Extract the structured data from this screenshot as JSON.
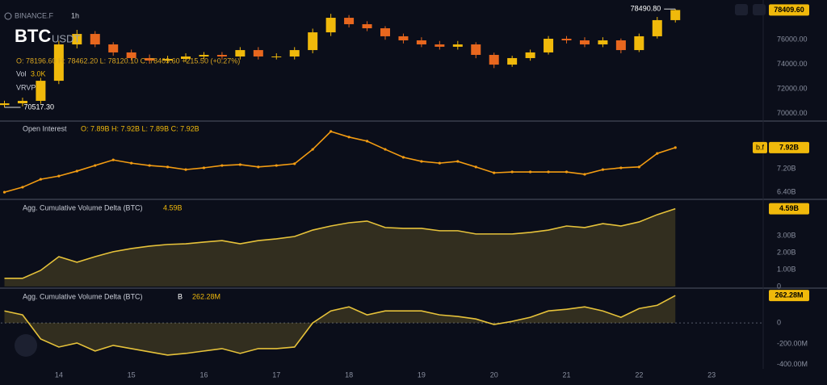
{
  "header": {
    "exchange": "BINANCE.F",
    "interval": "1h",
    "symbol": "BTC",
    "quote": "USDT",
    "ohlc_text": "O: 78196.60 H: 78462.20 L: 78120.10 C: 78409.60 +215.50 (+0.27%)",
    "volume_label": "Vol",
    "volume_value": "3.0K",
    "indicator": "VRVP"
  },
  "chart_data": [
    {
      "type": "candlestick",
      "up_color": "#f0b90b",
      "down_color": "#e8671e",
      "x": [
        13.25,
        13.5,
        13.75,
        14,
        14.25,
        14.5,
        14.75,
        15,
        15.25,
        15.5,
        15.75,
        16,
        16.25,
        16.5,
        16.75,
        17,
        17.25,
        17.5,
        17.75,
        18,
        18.25,
        18.5,
        18.75,
        19,
        19.25,
        19.5,
        19.75,
        20,
        20.25,
        20.5,
        20.75,
        21,
        21.25,
        21.5,
        21.75,
        22,
        22.25,
        22.5
      ],
      "open": [
        70700,
        70840,
        71040,
        72670,
        75620,
        76470,
        75620,
        74970,
        74510,
        74310,
        74440,
        74640,
        74770,
        74640,
        75160,
        74640,
        74640,
        75160,
        76600,
        77780,
        77260,
        76930,
        76280,
        75950,
        75620,
        75430,
        75620,
        74770,
        73980,
        74510,
        74970,
        76080,
        75950,
        75620,
        75950,
        75160,
        76280,
        77590
      ],
      "high": [
        71050,
        71300,
        72900,
        75900,
        76800,
        76700,
        75800,
        75200,
        74800,
        74700,
        74900,
        75000,
        75000,
        75400,
        75400,
        74900,
        75400,
        76900,
        78100,
        78000,
        77500,
        77100,
        76500,
        76200,
        75900,
        75900,
        75800,
        74950,
        74700,
        75200,
        76300,
        76300,
        76200,
        76200,
        76100,
        76500,
        77850,
        78490.8
      ],
      "low": [
        70517.3,
        70600,
        70800,
        72400,
        75300,
        75400,
        74700,
        74300,
        74050,
        74100,
        74200,
        74400,
        74400,
        74400,
        74400,
        74400,
        74400,
        74900,
        76300,
        77000,
        76700,
        76000,
        75700,
        75400,
        75200,
        75200,
        74500,
        73700,
        73800,
        74300,
        74800,
        75700,
        75400,
        75400,
        74900,
        75000,
        76100,
        77400
      ],
      "close": [
        70840,
        71040,
        72670,
        75620,
        76470,
        75620,
        74970,
        74510,
        74310,
        74440,
        74640,
        74770,
        74640,
        75160,
        74640,
        74640,
        75160,
        76600,
        77780,
        77260,
        76930,
        76280,
        75950,
        75620,
        75430,
        75620,
        74770,
        73980,
        74510,
        74970,
        76080,
        75950,
        75620,
        75950,
        75160,
        76280,
        77590,
        78409.6
      ],
      "xlim": [
        13.2,
        23.7
      ],
      "ylim": [
        69400,
        78700
      ],
      "yticks": [
        {
          "value": 76000,
          "label": "76000.00"
        },
        {
          "value": 74000,
          "label": "74000.00"
        },
        {
          "value": 72000,
          "label": "72000.00"
        },
        {
          "value": 70000,
          "label": "70000.00"
        }
      ],
      "current": {
        "value": 78409.6,
        "label": "78409.60"
      },
      "annotations": [
        {
          "x": 22.5,
          "value": 78490.8,
          "label": "78490.80"
        },
        {
          "x": 13.25,
          "value": 70517.3,
          "label": "70517.30"
        }
      ]
    },
    {
      "type": "line",
      "title": "Open Interest",
      "legend_text": "O: 7.89B H: 7.92B L: 7.89B C: 7.92B",
      "x": [
        13.25,
        13.5,
        13.75,
        14,
        14.25,
        14.5,
        14.75,
        15,
        15.25,
        15.5,
        15.75,
        16,
        16.25,
        16.5,
        16.75,
        17,
        17.25,
        17.5,
        17.75,
        18,
        18.25,
        18.5,
        18.75,
        19,
        19.25,
        19.5,
        19.75,
        20,
        20.25,
        20.5,
        20.75,
        21,
        21.25,
        21.5,
        21.75,
        22,
        22.25,
        22.5
      ],
      "series": [
        {
          "color": "#f39c12",
          "values": [
            6.4,
            6.57,
            6.84,
            6.95,
            7.12,
            7.31,
            7.5,
            7.39,
            7.31,
            7.26,
            7.17,
            7.23,
            7.31,
            7.34,
            7.26,
            7.31,
            7.37,
            7.86,
            8.47,
            8.28,
            8.14,
            7.86,
            7.59,
            7.45,
            7.39,
            7.45,
            7.26,
            7.06,
            7.09,
            7.09,
            7.09,
            7.09,
            7.01,
            7.17,
            7.23,
            7.26,
            7.72,
            7.92
          ]
        }
      ],
      "xlim": [
        13.2,
        23.7
      ],
      "ylim": [
        6.21,
        8.77
      ],
      "yticks": [
        {
          "value": 7.2,
          "label": "7.20B"
        },
        {
          "value": 6.4,
          "label": "6.40B"
        }
      ],
      "current": {
        "value": 7.92,
        "label": "7.92B"
      },
      "badge": "b.f"
    },
    {
      "type": "area",
      "title": "Agg. Cumulative Volume Delta (BTC)",
      "x": [
        13.25,
        13.5,
        13.75,
        14,
        14.25,
        14.5,
        14.75,
        15,
        15.25,
        15.5,
        15.75,
        16,
        16.25,
        16.5,
        16.75,
        17,
        17.25,
        17.5,
        17.75,
        18,
        18.25,
        18.5,
        18.75,
        19,
        19.25,
        19.5,
        19.75,
        20,
        20.25,
        20.5,
        20.75,
        21,
        21.25,
        21.5,
        21.75,
        22,
        22.25,
        22.5
      ],
      "series": [
        {
          "color": "#e6c23a",
          "values": [
            0.48,
            0.48,
            0.95,
            1.76,
            1.43,
            1.76,
            2.05,
            2.24,
            2.38,
            2.48,
            2.52,
            2.62,
            2.71,
            2.52,
            2.71,
            2.81,
            2.95,
            3.33,
            3.57,
            3.76,
            3.86,
            3.48,
            3.43,
            3.43,
            3.29,
            3.29,
            3.1,
            3.1,
            3.1,
            3.19,
            3.33,
            3.57,
            3.48,
            3.71,
            3.57,
            3.81,
            4.24,
            4.59
          ]
        }
      ],
      "xlim": [
        13.2,
        23.7
      ],
      "ylim": [
        -0.1,
        5.0
      ],
      "yticks": [
        {
          "value": 3,
          "label": "3.00B"
        },
        {
          "value": 2,
          "label": "2.00B"
        },
        {
          "value": 1,
          "label": "1.00B"
        },
        0
      ],
      "current": {
        "value": 4.59,
        "label": "4.59B"
      }
    },
    {
      "type": "area",
      "title": "Agg. Cumulative Volume Delta (BTC)",
      "icon_text": "B",
      "x": [
        13.25,
        13.5,
        13.75,
        14,
        14.25,
        14.5,
        14.75,
        15,
        15.25,
        15.5,
        15.75,
        16,
        16.25,
        16.5,
        16.75,
        17,
        17.25,
        17.5,
        17.75,
        18,
        18.25,
        18.5,
        18.75,
        19,
        19.25,
        19.5,
        19.75,
        20,
        20.25,
        20.5,
        20.75,
        21,
        21.25,
        21.5,
        21.75,
        22,
        22.25,
        22.5
      ],
      "series": [
        {
          "color": "#e6c23a",
          "values": [
            115,
            77,
            -154,
            -231,
            -192,
            -269,
            -215,
            -246,
            -277,
            -308,
            -292,
            -269,
            -246,
            -292,
            -246,
            -246,
            -231,
            0,
            115,
            154,
            77,
            115,
            115,
            115,
            77,
            62,
            38,
            -15,
            15,
            54,
            115,
            131,
            154,
            115,
            54,
            138,
            169,
            262.28
          ]
        }
      ],
      "xlim": [
        13.2,
        23.7
      ],
      "ylim": [
        -440,
        310
      ],
      "yticks": [
        0,
        {
          "value": -200,
          "label": "-200.00M"
        },
        {
          "value": -400,
          "label": "-400.00M"
        }
      ],
      "zero_line": true,
      "current": {
        "value": 262.28,
        "label": "262.28M"
      },
      "xticks": [
        14,
        15,
        16,
        17,
        18,
        19,
        20,
        21,
        22,
        23
      ]
    }
  ]
}
